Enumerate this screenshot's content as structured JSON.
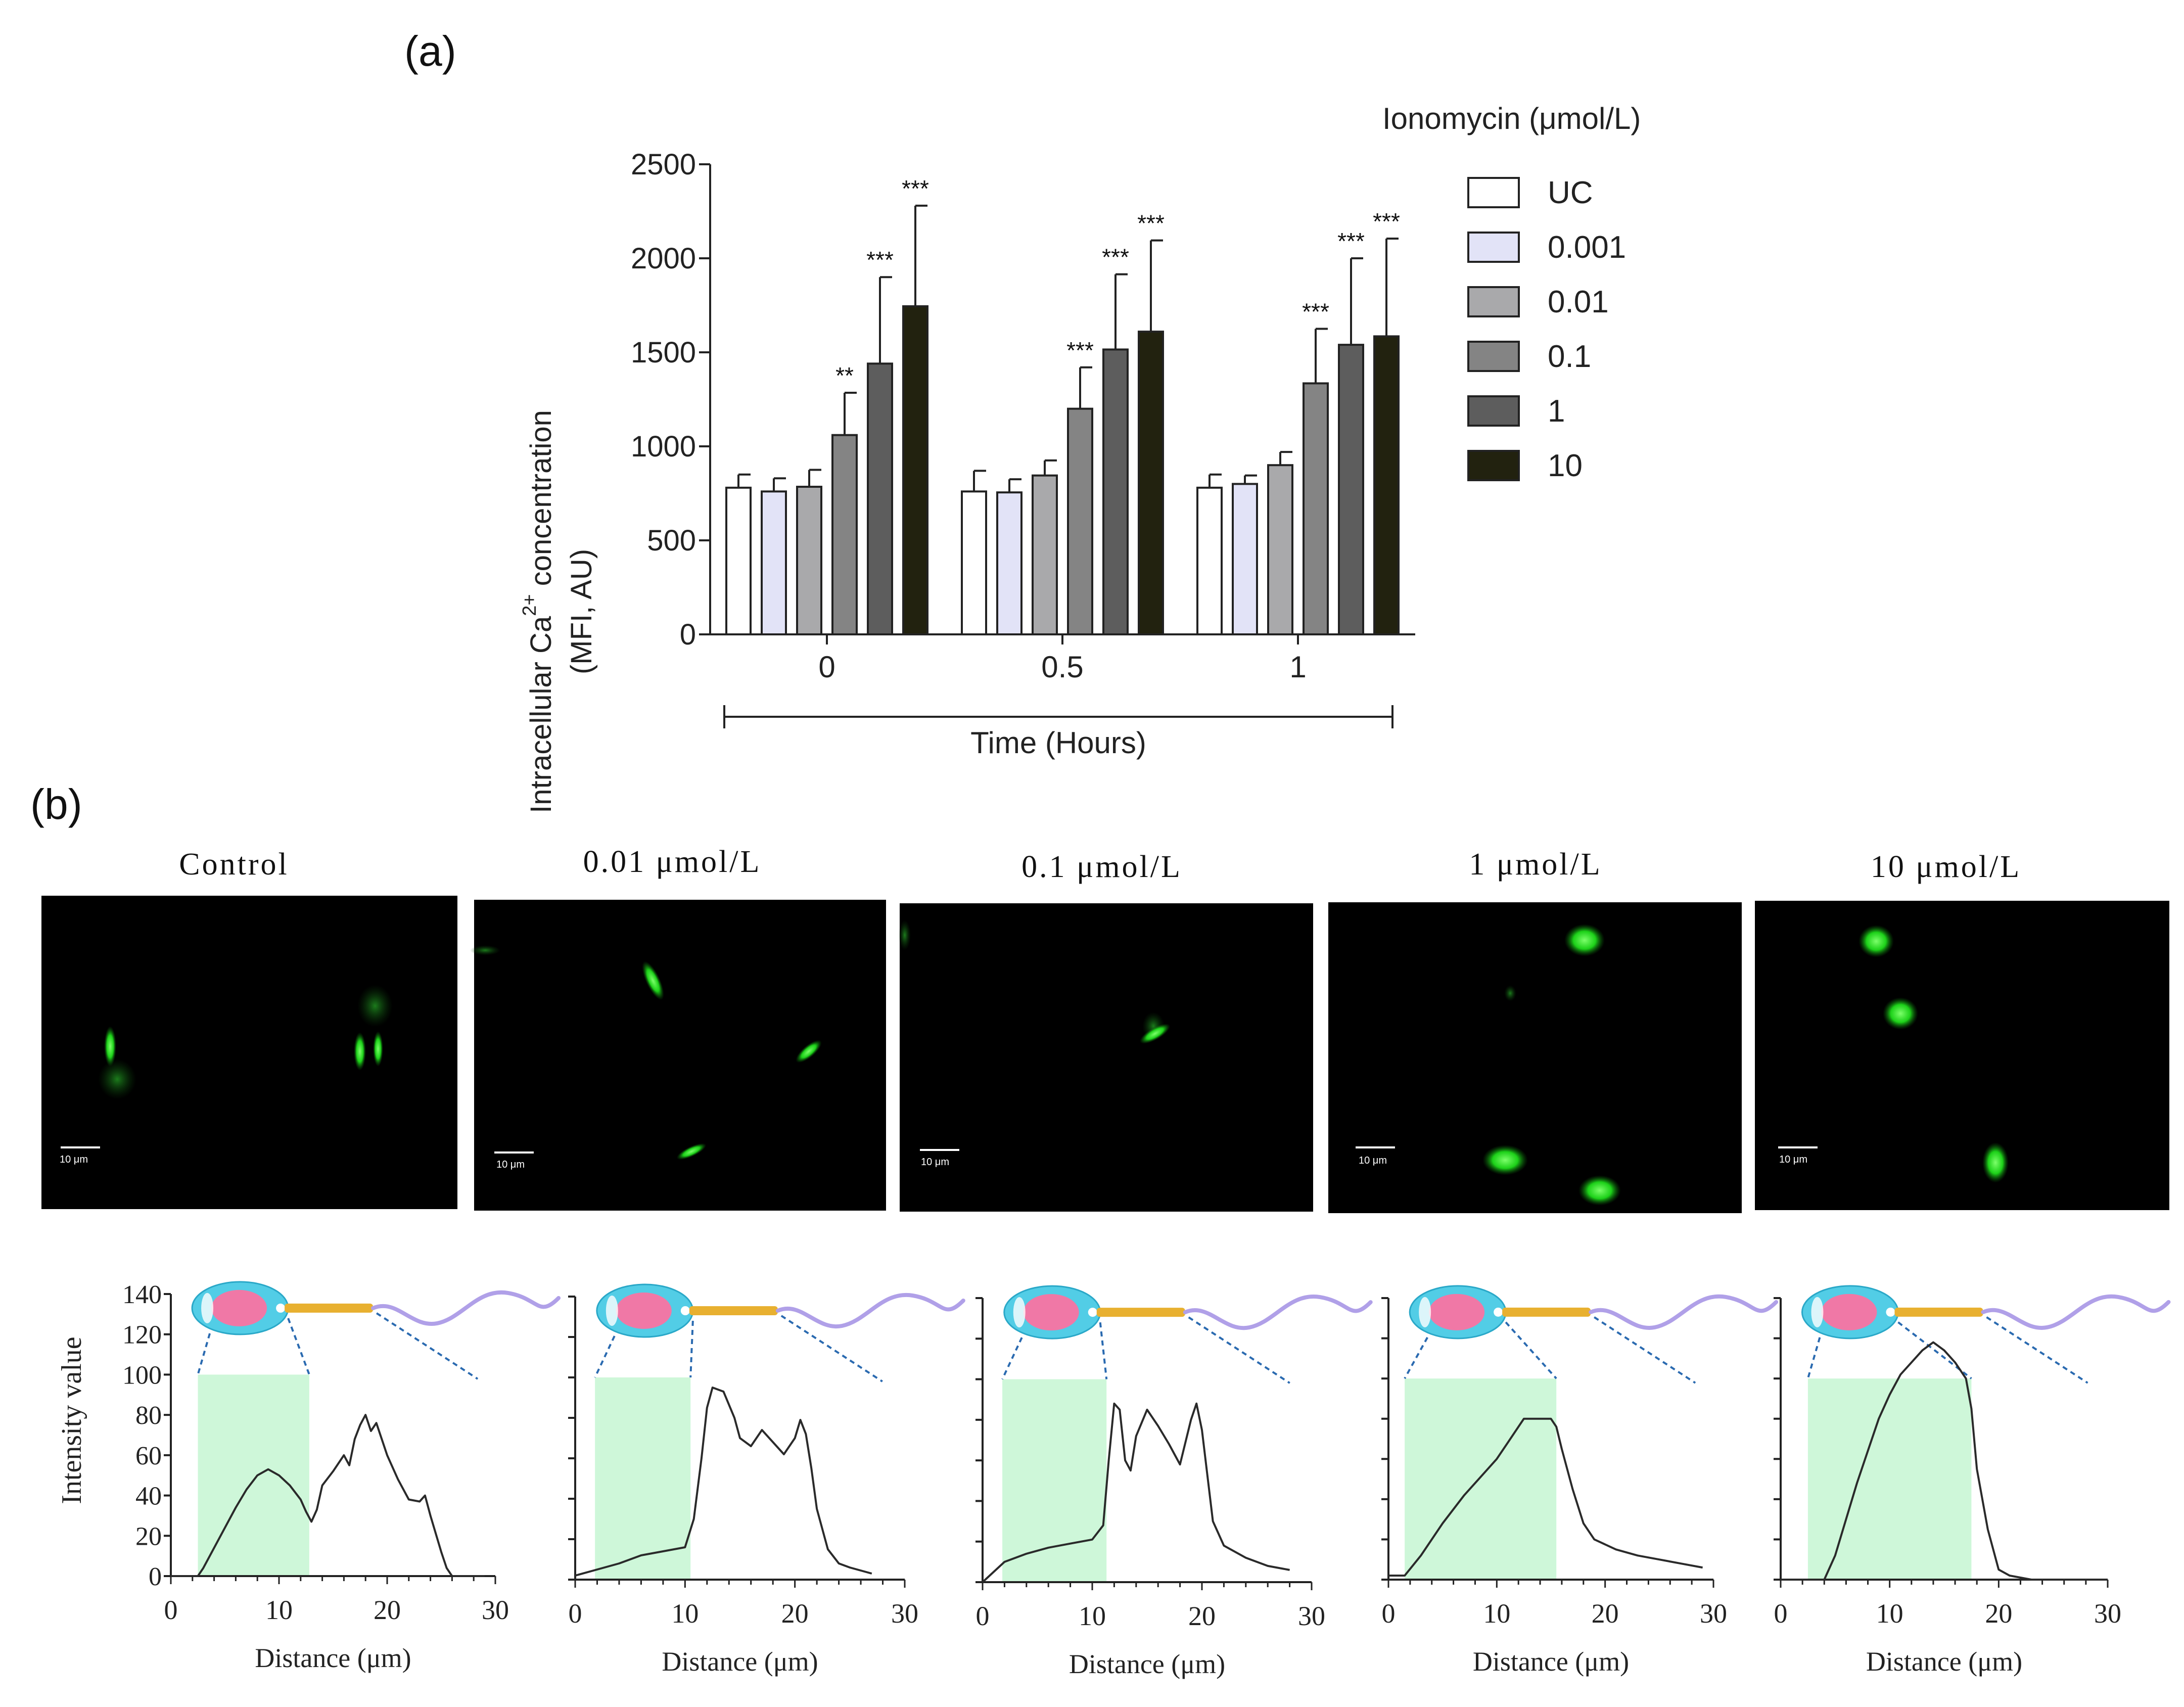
{
  "chart_data": [
    {
      "panel": "(a)",
      "type": "bar",
      "ylabel_line1": "Intracellular Ca",
      "ylabel_sup": "2+",
      "ylabel_line1_end": " concentration",
      "ylabel_line2": "(MFI, AU)",
      "xlabel": "Time (Hours)",
      "ylim": [
        0,
        2500
      ],
      "yticks": [
        0,
        500,
        1000,
        1500,
        2000,
        2500
      ],
      "categories": [
        "0",
        "0.5",
        "1"
      ],
      "legend_title": "Ionomycin (μmol/L)",
      "series": [
        {
          "name": "UC",
          "color": "#ffffff",
          "values": [
            780,
            760,
            780
          ],
          "errors": [
            70,
            110,
            70
          ],
          "sig": [
            "",
            "",
            ""
          ]
        },
        {
          "name": "0.001",
          "color": "#e2e3f7",
          "values": [
            760,
            755,
            800
          ],
          "errors": [
            70,
            70,
            45
          ],
          "sig": [
            "",
            "",
            ""
          ]
        },
        {
          "name": "0.01",
          "color": "#a9a9ab",
          "values": [
            785,
            845,
            900
          ],
          "errors": [
            90,
            80,
            70
          ],
          "sig": [
            "",
            "",
            ""
          ]
        },
        {
          "name": "0.1",
          "color": "#848484",
          "values": [
            1060,
            1200,
            1335
          ],
          "errors": [
            225,
            220,
            290
          ],
          "sig": [
            "**",
            "***",
            "***"
          ]
        },
        {
          "name": "1",
          "color": "#5d5d5d",
          "values": [
            1440,
            1515,
            1540
          ],
          "errors": [
            460,
            400,
            460
          ],
          "sig": [
            "***",
            "***",
            "***"
          ]
        },
        {
          "name": "10",
          "color": "#22220f",
          "values": [
            1745,
            1610,
            1585
          ],
          "errors": [
            535,
            485,
            520
          ],
          "sig": [
            "***",
            "***",
            "***"
          ]
        }
      ]
    },
    {
      "panel": "(b)",
      "type": "line",
      "ylabel": "Intensity value",
      "xlabel": "Distance (μm)",
      "xlim": [
        0,
        30
      ],
      "xticks": [
        0,
        10,
        20,
        30
      ],
      "ylim": [
        0,
        140
      ],
      "yticks": [
        0,
        20,
        40,
        60,
        80,
        100,
        120,
        140
      ],
      "profiles": [
        {
          "title": "Control",
          "shade": [
            2.5,
            12.8
          ],
          "points": [
            [
              0,
              0
            ],
            [
              2.5,
              0
            ],
            [
              3,
              4
            ],
            [
              4,
              14
            ],
            [
              5,
              24
            ],
            [
              6,
              34
            ],
            [
              7,
              43
            ],
            [
              8,
              50
            ],
            [
              9,
              53
            ],
            [
              10,
              50
            ],
            [
              11,
              45
            ],
            [
              12,
              38
            ],
            [
              12.5,
              32
            ],
            [
              13,
              27
            ],
            [
              13.5,
              33
            ],
            [
              14,
              45
            ],
            [
              15,
              52
            ],
            [
              16,
              60
            ],
            [
              16.5,
              55
            ],
            [
              17,
              68
            ],
            [
              17.5,
              75
            ],
            [
              18,
              80
            ],
            [
              18.5,
              72
            ],
            [
              19,
              76
            ],
            [
              19.5,
              68
            ],
            [
              20,
              60
            ],
            [
              21,
              48
            ],
            [
              22,
              38
            ],
            [
              23,
              37
            ],
            [
              23.5,
              40
            ],
            [
              24,
              30
            ],
            [
              25,
              12
            ],
            [
              25.5,
              4
            ],
            [
              26,
              0
            ],
            [
              29,
              0
            ]
          ]
        },
        {
          "title": "0.01 μmol/L",
          "shade": [
            1.8,
            10.5
          ],
          "points": [
            [
              0,
              2
            ],
            [
              2,
              5
            ],
            [
              4,
              8
            ],
            [
              6,
              12
            ],
            [
              8,
              14
            ],
            [
              10,
              16
            ],
            [
              10.8,
              30
            ],
            [
              11.5,
              60
            ],
            [
              12,
              85
            ],
            [
              12.5,
              95
            ],
            [
              13.5,
              93
            ],
            [
              14.5,
              80
            ],
            [
              15,
              70
            ],
            [
              16,
              66
            ],
            [
              17,
              74
            ],
            [
              18,
              68
            ],
            [
              19,
              62
            ],
            [
              20,
              70
            ],
            [
              20.5,
              79
            ],
            [
              21,
              72
            ],
            [
              21.5,
              55
            ],
            [
              22,
              35
            ],
            [
              23,
              15
            ],
            [
              24,
              8
            ],
            [
              25,
              6
            ],
            [
              27,
              3
            ]
          ]
        },
        {
          "title": "0.1 μmol/L",
          "shade": [
            1.8,
            11.3
          ],
          "points": [
            [
              0,
              0
            ],
            [
              2,
              10
            ],
            [
              4,
              14
            ],
            [
              6,
              17
            ],
            [
              8,
              19
            ],
            [
              10,
              21
            ],
            [
              11,
              28
            ],
            [
              11.5,
              60
            ],
            [
              12,
              88
            ],
            [
              12.5,
              85
            ],
            [
              13,
              60
            ],
            [
              13.5,
              55
            ],
            [
              14,
              72
            ],
            [
              15,
              85
            ],
            [
              16,
              77
            ],
            [
              17,
              68
            ],
            [
              18,
              58
            ],
            [
              19,
              80
            ],
            [
              19.5,
              88
            ],
            [
              20,
              75
            ],
            [
              21,
              30
            ],
            [
              22,
              18
            ],
            [
              24,
              12
            ],
            [
              26,
              8
            ],
            [
              28,
              6
            ]
          ]
        },
        {
          "title": "1 μmol/L",
          "shade": [
            1.5,
            15.5
          ],
          "points": [
            [
              0,
              2
            ],
            [
              1.5,
              2
            ],
            [
              3,
              12
            ],
            [
              5,
              28
            ],
            [
              7,
              42
            ],
            [
              9,
              54
            ],
            [
              10,
              60
            ],
            [
              11,
              68
            ],
            [
              12,
              76
            ],
            [
              12.5,
              80
            ],
            [
              15,
              80
            ],
            [
              15.5,
              76
            ],
            [
              16,
              65
            ],
            [
              17,
              45
            ],
            [
              18,
              28
            ],
            [
              19,
              20
            ],
            [
              21,
              15
            ],
            [
              23,
              12
            ],
            [
              25,
              10
            ],
            [
              27,
              8
            ],
            [
              29,
              6
            ]
          ]
        },
        {
          "title": "10 μmol/L",
          "shade": [
            2.5,
            17.5
          ],
          "points": [
            [
              0,
              0
            ],
            [
              4,
              0
            ],
            [
              5,
              12
            ],
            [
              6,
              30
            ],
            [
              7,
              48
            ],
            [
              8,
              64
            ],
            [
              9,
              80
            ],
            [
              10,
              92
            ],
            [
              11,
              102
            ],
            [
              12,
              108
            ],
            [
              13,
              114
            ],
            [
              14,
              118
            ],
            [
              15,
              114
            ],
            [
              16,
              108
            ],
            [
              17,
              100
            ],
            [
              17.5,
              85
            ],
            [
              18,
              55
            ],
            [
              19,
              25
            ],
            [
              20,
              5
            ],
            [
              21,
              2
            ],
            [
              23,
              0
            ],
            [
              30,
              0
            ]
          ]
        }
      ]
    }
  ],
  "panel_b": {
    "scale_bar_label": "10 μm",
    "colors": {
      "fluor": "#24e020",
      "shade": "#c6f6d2",
      "head": "#52cde6",
      "nucleus": "#f078a6",
      "midpiece": "#e8b030",
      "tail": "#b0a0e8"
    }
  }
}
